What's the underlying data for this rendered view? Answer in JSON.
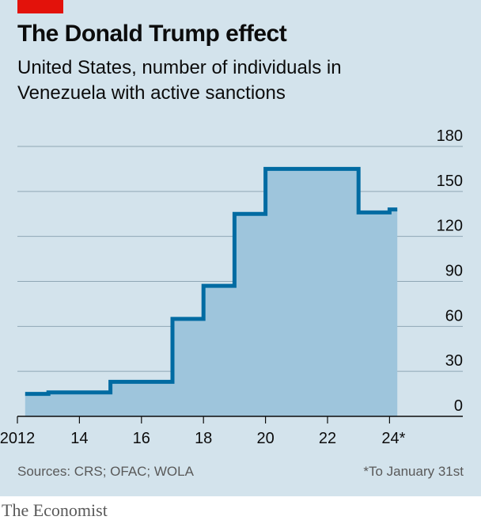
{
  "header": {
    "title": "The Donald Trump effect",
    "subtitle": "United States, number of individuals in Venezuela with active sanctions"
  },
  "footer": {
    "source": "Sources: CRS; OFAC; WOLA",
    "footnote": "*To January 31st",
    "brand": "The Economist"
  },
  "colors": {
    "accent": "#e3120b",
    "background": "#d3e3ec",
    "line": "#006ba2",
    "area": "#9ec5dc"
  },
  "chart_data": {
    "type": "area",
    "step": true,
    "x": [
      2012.25,
      2013,
      2015,
      2017,
      2018,
      2019,
      2020,
      2023,
      2024.0,
      2024.25
    ],
    "y": [
      15,
      16,
      23,
      65,
      87,
      135,
      165,
      136,
      138,
      138
    ],
    "xlim": [
      2011.7,
      2025.5
    ],
    "ylim": [
      0,
      180
    ],
    "x_ticks": [
      {
        "value": 2012,
        "label": "2012"
      },
      {
        "value": 2014,
        "label": "14"
      },
      {
        "value": 2016,
        "label": "16"
      },
      {
        "value": 2018,
        "label": "18"
      },
      {
        "value": 2020,
        "label": "20"
      },
      {
        "value": 2022,
        "label": "22"
      },
      {
        "value": 2024,
        "label": "24*"
      }
    ],
    "y_ticks": [
      0,
      30,
      60,
      90,
      120,
      150,
      180
    ],
    "grid": true,
    "y_axis_side": "right"
  }
}
